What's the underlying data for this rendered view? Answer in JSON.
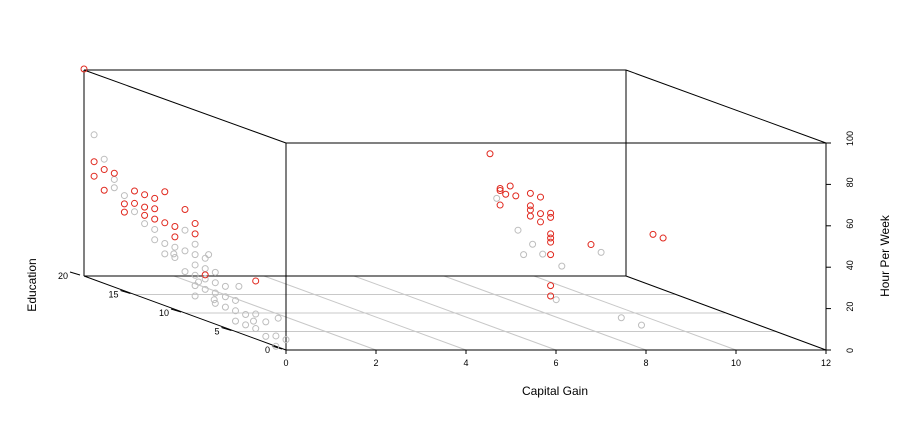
{
  "chart_data": {
    "type": "scatter",
    "projection": "3d",
    "title": "",
    "xlabel": "Capital Gain",
    "ylabel": "Education",
    "zlabel": "Hour Per Week",
    "xlim": [
      0,
      12
    ],
    "ylim": [
      0,
      20
    ],
    "zlim": [
      0,
      100
    ],
    "x_ticks": [
      "0",
      "2",
      "4",
      "6",
      "8",
      "10",
      "12"
    ],
    "y_ticks": [
      "0",
      "5",
      "10",
      "15",
      "20"
    ],
    "z_ticks": [
      "0",
      "20",
      "40",
      "60",
      "80",
      "100"
    ],
    "grid": "floor",
    "colors": {
      "red_series": "#e0281e",
      "gray_series": "#bdbdbd",
      "box": "#000000",
      "grid": "#c8c8c8"
    },
    "series": [
      {
        "color": "#e0281e",
        "points": [
          [
            0,
            20,
            100
          ],
          [
            0,
            19,
            50
          ],
          [
            0,
            19,
            57
          ],
          [
            0,
            18,
            55
          ],
          [
            0,
            18,
            45
          ],
          [
            0,
            17,
            55
          ],
          [
            0,
            16,
            42
          ],
          [
            0,
            16,
            38
          ],
          [
            0,
            15,
            50
          ],
          [
            0,
            15,
            44
          ],
          [
            0,
            14,
            40
          ],
          [
            0,
            14,
            44
          ],
          [
            0,
            14,
            50
          ],
          [
            0,
            13,
            40
          ],
          [
            0,
            13,
            45
          ],
          [
            0,
            13,
            50
          ],
          [
            0,
            12,
            55
          ],
          [
            0,
            12,
            40
          ],
          [
            0,
            11,
            35
          ],
          [
            0,
            11,
            40
          ],
          [
            0,
            10,
            50
          ],
          [
            0,
            9,
            45
          ],
          [
            0,
            9,
            40
          ],
          [
            0,
            8,
            22
          ],
          [
            0,
            3,
            28
          ],
          [
            7.9,
            15,
            68
          ],
          [
            7.9,
            14,
            52
          ],
          [
            7.9,
            14,
            53
          ],
          [
            7.9,
            14,
            45
          ],
          [
            7.8,
            13,
            52
          ],
          [
            7.9,
            13,
            56
          ],
          [
            7.8,
            12,
            53
          ],
          [
            7.9,
            11,
            50
          ],
          [
            7.9,
            11,
            56
          ],
          [
            7.9,
            11,
            48
          ],
          [
            7.9,
            11,
            45
          ],
          [
            7.9,
            10,
            56
          ],
          [
            7.9,
            10,
            48
          ],
          [
            7.9,
            10,
            44
          ],
          [
            7.9,
            9,
            50
          ],
          [
            7.9,
            9,
            48
          ],
          [
            7.9,
            9,
            38
          ],
          [
            7.9,
            9,
            36
          ],
          [
            7.9,
            9,
            40
          ],
          [
            7.9,
            9,
            30
          ],
          [
            7.9,
            9,
            10
          ],
          [
            7.9,
            9,
            15
          ],
          [
            10.4,
            10,
            38
          ],
          [
            10.4,
            9,
            38
          ],
          [
            7.9,
            5,
            42
          ]
        ]
      },
      {
        "color": "#bdbdbd",
        "points": [
          [
            0,
            19,
            70
          ],
          [
            0,
            18,
            60
          ],
          [
            0,
            17,
            52
          ],
          [
            0,
            17,
            48
          ],
          [
            0,
            16,
            46
          ],
          [
            0,
            15,
            40
          ],
          [
            0,
            14,
            36
          ],
          [
            0,
            13,
            35
          ],
          [
            0,
            13,
            30
          ],
          [
            0,
            12,
            30
          ],
          [
            0,
            12,
            25
          ],
          [
            0,
            11,
            30
          ],
          [
            0,
            11,
            25
          ],
          [
            0,
            10,
            40
          ],
          [
            0,
            10,
            30
          ],
          [
            0,
            10,
            20
          ],
          [
            0,
            9,
            35
          ],
          [
            0,
            9,
            30
          ],
          [
            0,
            9,
            25
          ],
          [
            0,
            9,
            20
          ],
          [
            0,
            9,
            15
          ],
          [
            0,
            9,
            10
          ],
          [
            0,
            8,
            30
          ],
          [
            0,
            8,
            25
          ],
          [
            0,
            8,
            20
          ],
          [
            0,
            8,
            15
          ],
          [
            0,
            7,
            25
          ],
          [
            0,
            7,
            20
          ],
          [
            0,
            7,
            15
          ],
          [
            0,
            7,
            10
          ],
          [
            0,
            6,
            20
          ],
          [
            0,
            6,
            15
          ],
          [
            0,
            6,
            10
          ],
          [
            0,
            5,
            15
          ],
          [
            0,
            5,
            10
          ],
          [
            0,
            5,
            5
          ],
          [
            0,
            4,
            10
          ],
          [
            0,
            4,
            5
          ],
          [
            0,
            3,
            12
          ],
          [
            0,
            3,
            5
          ],
          [
            0,
            2,
            10
          ],
          [
            0,
            2,
            3
          ],
          [
            0,
            1,
            5
          ],
          [
            0,
            1,
            0
          ],
          [
            0,
            0,
            5
          ],
          [
            0.3,
            9,
            30
          ],
          [
            0.3,
            6,
            20
          ],
          [
            0.2,
            12,
            25
          ],
          [
            0.2,
            8,
            10
          ],
          [
            0.4,
            5,
            5
          ],
          [
            0.5,
            3,
            10
          ],
          [
            0.3,
            10,
            15
          ],
          [
            7.5,
            9,
            35
          ],
          [
            7.4,
            10,
            40
          ],
          [
            7.6,
            13,
            50
          ],
          [
            7.3,
            9,
            30
          ],
          [
            7.5,
            8,
            32
          ],
          [
            7.7,
            7,
            28
          ],
          [
            7.8,
            8,
            10
          ],
          [
            7.9,
            4,
            40
          ],
          [
            7.9,
            2,
            12
          ],
          [
            7.9,
            0,
            12
          ]
        ]
      }
    ]
  }
}
